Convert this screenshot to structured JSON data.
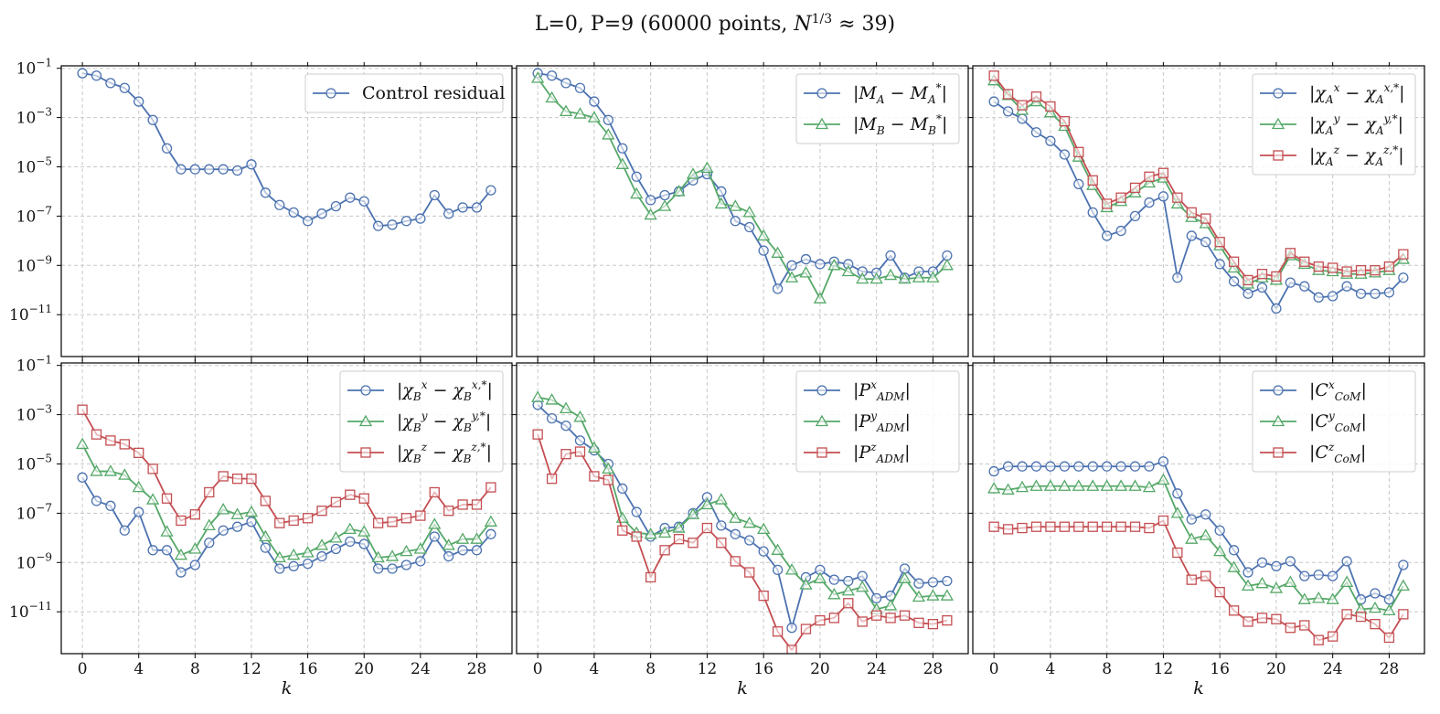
{
  "colors": {
    "blue": "#4c72b0",
    "green": "#55a868",
    "red": "#c44e52"
  },
  "chart_data": {
    "type": "line",
    "suptitle": "L=0, P=9 (60000 points, N^{1/3} ≈ 39)",
    "y_scale": "log",
    "ylim_exp": [
      -12.7,
      -0.9
    ],
    "y_ticks_exp": [
      -11,
      -9,
      -7,
      -5,
      -3,
      -1
    ],
    "x_range": [
      -1.5,
      30.5
    ],
    "x_ticks": [
      0,
      4,
      8,
      12,
      16,
      20,
      24,
      28
    ],
    "xlabel": "k",
    "grid": true,
    "legend_position": "top-right",
    "panels": [
      {
        "id": "control-residual",
        "series": [
          {
            "name": "Control residual",
            "color": "blue",
            "marker": "circle",
            "log10_values": [
              -1.2,
              -1.3,
              -1.6,
              -1.8,
              -2.35,
              -3.1,
              -4.25,
              -5.1,
              -5.1,
              -5.1,
              -5.1,
              -5.15,
              -4.9,
              -6.05,
              -6.55,
              -6.85,
              -7.2,
              -6.9,
              -6.6,
              -6.25,
              -6.4,
              -7.4,
              -7.35,
              -7.2,
              -7.1,
              -6.15,
              -6.9,
              -6.65,
              -6.65,
              -5.95
            ]
          }
        ]
      },
      {
        "id": "mass",
        "series": [
          {
            "name": "|M_A − M_A^*|",
            "color": "blue",
            "marker": "circle",
            "log10_values": [
              -1.2,
              -1.3,
              -1.6,
              -1.8,
              -2.35,
              -3.1,
              -4.25,
              -5.4,
              -6.35,
              -6.15,
              -6.0,
              -5.55,
              -5.3,
              -6.0,
              -7.2,
              -7.45,
              -8.4,
              -9.95,
              -9.0,
              -8.75,
              -8.95,
              -8.85,
              -8.95,
              -9.25,
              -9.3,
              -8.6,
              -9.5,
              -9.25,
              -9.25,
              -8.6
            ]
          },
          {
            "name": "|M_B − M_B^*|",
            "color": "green",
            "marker": "triangle",
            "log10_values": [
              -1.4,
              -2.2,
              -2.75,
              -2.85,
              -3.0,
              -3.7,
              -4.9,
              -6.1,
              -6.95,
              -6.6,
              -6.0,
              -5.3,
              -5.05,
              -6.5,
              -6.6,
              -6.85,
              -7.8,
              -8.5,
              -9.5,
              -9.3,
              -10.35,
              -9.0,
              -9.25,
              -9.55,
              -9.55,
              -9.4,
              -9.55,
              -9.5,
              -9.5,
              -9.0
            ]
          }
        ]
      },
      {
        "id": "chi-a",
        "series": [
          {
            "name": "|χ_A^x − χ_A^{x,*}|",
            "color": "blue",
            "marker": "circle",
            "log10_values": [
              -2.35,
              -2.75,
              -3.05,
              -3.6,
              -3.95,
              -4.5,
              -5.7,
              -6.85,
              -7.8,
              -7.6,
              -7.0,
              -6.45,
              -6.2,
              -9.5,
              -7.8,
              -8.05,
              -8.95,
              -9.65,
              -10.15,
              -9.9,
              -10.75,
              -9.7,
              -9.85,
              -10.3,
              -10.25,
              -9.85,
              -10.15,
              -10.15,
              -10.1,
              -9.5
            ]
          },
          {
            "name": "|χ_A^y − χ_A^{y,*}|",
            "color": "green",
            "marker": "triangle",
            "log10_values": [
              -1.5,
              -2.1,
              -2.7,
              -2.35,
              -2.8,
              -3.35,
              -4.6,
              -5.75,
              -6.65,
              -6.4,
              -6.05,
              -5.65,
              -5.45,
              -6.5,
              -7.05,
              -7.3,
              -8.2,
              -9.1,
              -9.75,
              -9.5,
              -9.6,
              -8.6,
              -8.95,
              -9.2,
              -9.25,
              -9.35,
              -9.35,
              -9.3,
              -9.2,
              -8.75
            ]
          },
          {
            "name": "|χ_A^z − χ_A^{z,*}|",
            "color": "red",
            "marker": "square",
            "log10_values": [
              -1.3,
              -2.05,
              -2.5,
              -2.15,
              -2.55,
              -3.15,
              -4.4,
              -5.55,
              -6.5,
              -6.25,
              -5.85,
              -5.4,
              -5.25,
              -6.25,
              -6.85,
              -7.1,
              -8.05,
              -8.85,
              -9.6,
              -9.35,
              -9.45,
              -8.5,
              -8.85,
              -9.05,
              -9.1,
              -9.25,
              -9.2,
              -9.2,
              -9.05,
              -8.55
            ]
          }
        ]
      },
      {
        "id": "chi-b",
        "series": [
          {
            "name": "|χ_B^x − χ_B^{x,*}|",
            "color": "blue",
            "marker": "circle",
            "log10_values": [
              -5.55,
              -6.5,
              -6.7,
              -7.7,
              -6.95,
              -8.5,
              -8.5,
              -9.4,
              -9.1,
              -8.2,
              -7.7,
              -7.55,
              -7.35,
              -8.4,
              -9.25,
              -9.15,
              -9.05,
              -8.75,
              -8.45,
              -8.15,
              -8.25,
              -9.25,
              -9.25,
              -9.1,
              -8.95,
              -7.95,
              -8.75,
              -8.5,
              -8.5,
              -7.85
            ]
          },
          {
            "name": "|χ_B^y − χ_B^{y,*}|",
            "color": "green",
            "marker": "triangle",
            "log10_values": [
              -4.2,
              -5.3,
              -5.3,
              -5.45,
              -5.95,
              -6.45,
              -7.75,
              -8.7,
              -8.45,
              -7.5,
              -6.85,
              -7.05,
              -6.95,
              -7.95,
              -8.8,
              -8.7,
              -8.6,
              -8.3,
              -8.0,
              -7.65,
              -7.75,
              -8.8,
              -8.75,
              -8.55,
              -8.45,
              -7.45,
              -8.3,
              -8.05,
              -8.05,
              -7.35
            ]
          },
          {
            "name": "|χ_B^z − χ_B^{z,*}|",
            "color": "red",
            "marker": "square",
            "log10_values": [
              -2.8,
              -3.8,
              -4.05,
              -4.2,
              -4.55,
              -5.2,
              -6.4,
              -7.3,
              -7.05,
              -6.15,
              -5.5,
              -5.6,
              -5.6,
              -6.5,
              -7.4,
              -7.3,
              -7.2,
              -6.9,
              -6.55,
              -6.25,
              -6.4,
              -7.4,
              -7.35,
              -7.2,
              -7.1,
              -6.15,
              -6.9,
              -6.65,
              -6.65,
              -5.95
            ]
          }
        ]
      },
      {
        "id": "momentum",
        "series": [
          {
            "name": "|P^x_{ADM}|",
            "color": "blue",
            "marker": "circle",
            "log10_values": [
              -2.6,
              -3.15,
              -3.45,
              -4.05,
              -4.45,
              -5.0,
              -6.0,
              -6.95,
              -7.95,
              -7.6,
              -7.55,
              -7.0,
              -6.35,
              -7.5,
              -7.85,
              -8.1,
              -8.55,
              -9.3,
              -11.65,
              -9.6,
              -9.3,
              -9.7,
              -9.75,
              -9.55,
              -10.45,
              -10.35,
              -9.25,
              -9.85,
              -9.8,
              -9.75
            ]
          },
          {
            "name": "|P^y_{ADM}|",
            "color": "green",
            "marker": "triangle",
            "log10_values": [
              -2.3,
              -2.4,
              -2.75,
              -3.1,
              -4.35,
              -5.2,
              -7.2,
              -7.8,
              -7.85,
              -7.8,
              -7.6,
              -7.05,
              -6.65,
              -6.45,
              -7.2,
              -7.4,
              -7.65,
              -8.5,
              -9.3,
              -9.9,
              -9.65,
              -10.3,
              -10.15,
              -10.0,
              -10.9,
              -10.75,
              -9.65,
              -10.4,
              -10.35,
              -10.35
            ]
          },
          {
            "name": "|P^z_{ADM}|",
            "color": "red",
            "marker": "square",
            "log10_values": [
              -3.8,
              -5.6,
              -4.6,
              -4.5,
              -5.5,
              -5.65,
              -7.7,
              -7.95,
              -9.6,
              -8.5,
              -8.05,
              -8.2,
              -7.6,
              -8.2,
              -8.95,
              -9.4,
              -10.35,
              -11.8,
              -12.55,
              -11.7,
              -11.35,
              -11.25,
              -10.65,
              -11.4,
              -11.15,
              -11.25,
              -11.15,
              -11.45,
              -11.5,
              -11.35
            ]
          }
        ]
      },
      {
        "id": "com",
        "series": [
          {
            "name": "|C^x_{CoM}|",
            "color": "blue",
            "marker": "circle",
            "log10_values": [
              -5.3,
              -5.1,
              -5.1,
              -5.1,
              -5.1,
              -5.1,
              -5.1,
              -5.1,
              -5.1,
              -5.1,
              -5.1,
              -5.1,
              -4.9,
              -6.2,
              -7.25,
              -7.05,
              -7.7,
              -8.5,
              -9.4,
              -9.0,
              -9.15,
              -8.95,
              -9.55,
              -9.5,
              -9.55,
              -8.95,
              -10.5,
              -10.25,
              -10.5,
              -9.1
            ]
          },
          {
            "name": "|C^y_{CoM}|",
            "color": "green",
            "marker": "triangle",
            "log10_values": [
              -6.0,
              -6.05,
              -5.95,
              -5.9,
              -5.9,
              -5.9,
              -5.9,
              -5.9,
              -5.9,
              -5.9,
              -5.9,
              -5.95,
              -5.65,
              -7.0,
              -8.05,
              -7.9,
              -8.55,
              -9.2,
              -9.95,
              -9.85,
              -10.05,
              -9.8,
              -10.5,
              -10.45,
              -10.5,
              -9.8,
              -10.9,
              -10.85,
              -10.95,
              -9.95
            ]
          },
          {
            "name": "|C^z_{CoM}|",
            "color": "red",
            "marker": "square",
            "log10_values": [
              -7.55,
              -7.65,
              -7.6,
              -7.55,
              -7.55,
              -7.55,
              -7.55,
              -7.55,
              -7.55,
              -7.55,
              -7.55,
              -7.6,
              -7.3,
              -8.6,
              -9.7,
              -9.55,
              -10.2,
              -10.95,
              -11.4,
              -11.25,
              -11.3,
              -11.65,
              -11.55,
              -12.15,
              -12.0,
              -11.1,
              -11.2,
              -11.5,
              -12.05,
              -11.1
            ]
          }
        ]
      }
    ]
  }
}
